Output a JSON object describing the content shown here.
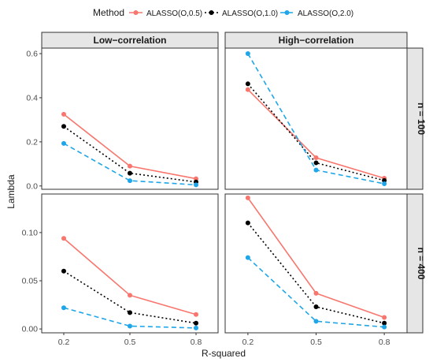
{
  "chart_data": {
    "type": "line",
    "xlabel": "R-squared",
    "ylabel": "Lambda",
    "x": [
      0.2,
      0.5,
      0.8
    ],
    "x_tick_labels": [
      "0.2",
      "0.5",
      "0.8"
    ],
    "legend": {
      "title": "Method",
      "placement": "top",
      "entries": [
        {
          "label": "ALASSO(O,0.5)",
          "color": "#F8766D",
          "linestyle": "solid"
        },
        {
          "label": "ALASSO(O,1.0)",
          "color": "#000000",
          "linestyle": "dotted"
        },
        {
          "label": "ALASSO(O,2.0)",
          "color": "#1EA6E8",
          "linestyle": "dashed"
        }
      ]
    },
    "column_facets": [
      "Low−correlation",
      "High−correlation"
    ],
    "row_facets": [
      "n = 100",
      "n = 400"
    ],
    "grid": false,
    "rows": [
      {
        "ylim": [
          -0.015,
          0.625
        ],
        "y_ticks": [
          0.0,
          0.2,
          0.4,
          0.6
        ],
        "y_tick_labels": [
          "0.0",
          "0.2",
          "0.4",
          "0.6"
        ],
        "panels": [
          {
            "series": [
              {
                "name": "ALASSO(O,0.5)",
                "values": [
                  0.325,
                  0.09,
                  0.033
                ]
              },
              {
                "name": "ALASSO(O,1.0)",
                "values": [
                  0.27,
                  0.058,
                  0.018
                ]
              },
              {
                "name": "ALASSO(O,2.0)",
                "values": [
                  0.193,
                  0.024,
                  0.005
                ]
              }
            ]
          },
          {
            "series": [
              {
                "name": "ALASSO(O,0.5)",
                "values": [
                  0.437,
                  0.128,
                  0.035
                ]
              },
              {
                "name": "ALASSO(O,1.0)",
                "values": [
                  0.463,
                  0.105,
                  0.025
                ]
              },
              {
                "name": "ALASSO(O,2.0)",
                "values": [
                  0.6,
                  0.072,
                  0.01
                ]
              }
            ]
          }
        ]
      },
      {
        "ylim": [
          -0.004,
          0.14
        ],
        "y_ticks": [
          0.0,
          0.05,
          0.1
        ],
        "y_tick_labels": [
          "0.00",
          "0.05",
          "0.10"
        ],
        "panels": [
          {
            "series": [
              {
                "name": "ALASSO(O,0.5)",
                "values": [
                  0.094,
                  0.035,
                  0.015
                ]
              },
              {
                "name": "ALASSO(O,1.0)",
                "values": [
                  0.06,
                  0.017,
                  0.006
                ]
              },
              {
                "name": "ALASSO(O,2.0)",
                "values": [
                  0.022,
                  0.003,
                  0.001
                ]
              }
            ]
          },
          {
            "series": [
              {
                "name": "ALASSO(O,0.5)",
                "values": [
                  0.136,
                  0.037,
                  0.012
                ]
              },
              {
                "name": "ALASSO(O,1.0)",
                "values": [
                  0.11,
                  0.023,
                  0.006
                ]
              },
              {
                "name": "ALASSO(O,2.0)",
                "values": [
                  0.074,
                  0.008,
                  0.002
                ]
              }
            ]
          }
        ]
      }
    ]
  }
}
